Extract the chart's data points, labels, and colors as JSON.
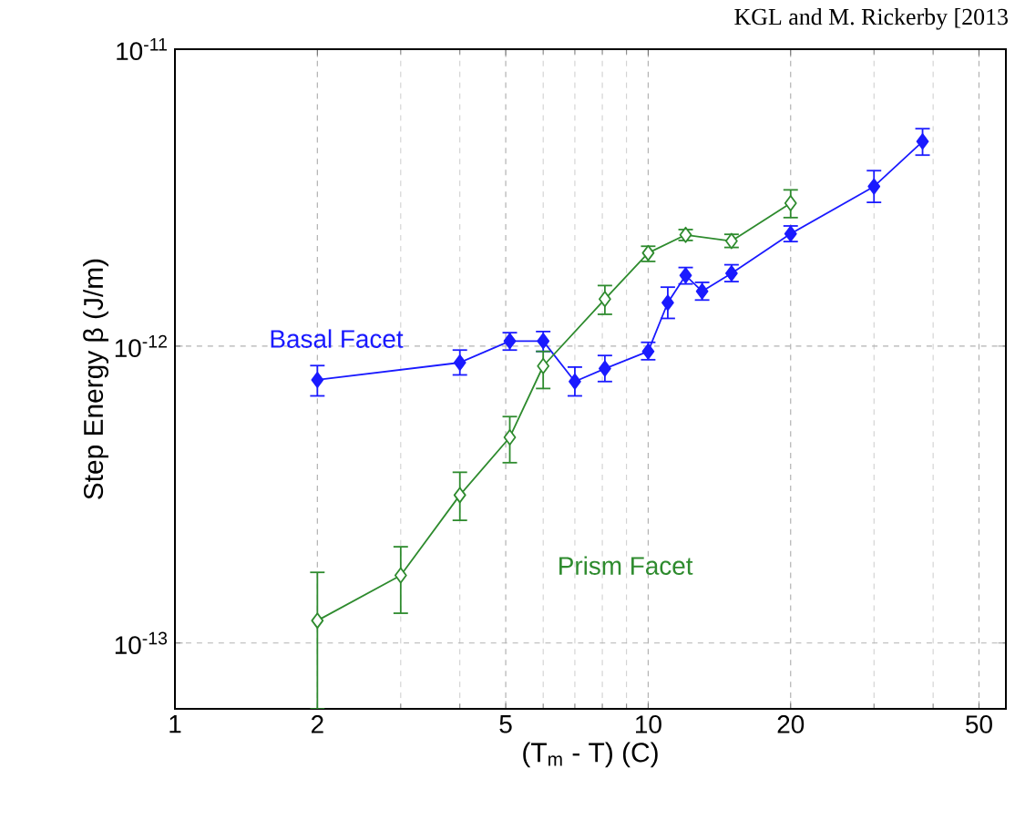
{
  "chart_data": {
    "type": "line",
    "xlabel": "(T$_{m}$ - T) (C)",
    "ylabel": "Step Energy β  (J/m)",
    "log": "xy",
    "xlim": [
      1,
      57
    ],
    "ylim": [
      6e-14,
      1e-11
    ],
    "xticks": [
      1,
      2,
      5,
      10,
      20,
      50
    ],
    "yticks": [
      {
        "value": 1e-13,
        "label": "10$^{-13}$"
      },
      {
        "value": 1e-12,
        "label": "10$^{-12}$"
      },
      {
        "value": 1e-11,
        "label": "10$^{-11}$"
      }
    ],
    "grid": true,
    "marker": "diamond",
    "line_style": "solid",
    "series": [
      {
        "name": "Basal Facet",
        "color": "#1a1aff",
        "x": [
          2,
          4,
          5.1,
          6,
          7,
          8.1,
          10,
          11,
          12,
          13,
          15,
          20,
          30,
          38
        ],
        "values": [
          7.7e-13,
          8.8e-13,
          1.04e-12,
          1.04e-12,
          7.6e-13,
          8.4e-13,
          9.6e-13,
          1.4e-12,
          1.73e-12,
          1.53e-12,
          1.76e-12,
          2.39e-12,
          3.45e-12,
          4.89e-12
        ],
        "errors": [
          [
            6.8e-13,
            8.6e-13
          ],
          [
            8e-13,
            9.7e-13
          ],
          [
            9.7e-13,
            1.11e-12
          ],
          [
            9.6e-13,
            1.12e-12
          ],
          [
            6.8e-13,
            8.5e-13
          ],
          [
            7.6e-13,
            9.3e-13
          ],
          [
            9e-13,
            1.03e-12
          ],
          [
            1.24e-12,
            1.58e-12
          ],
          [
            1.62e-12,
            1.84e-12
          ],
          [
            1.43e-12,
            1.64e-12
          ],
          [
            1.65e-12,
            1.88e-12
          ],
          [
            2.25e-12,
            2.54e-12
          ],
          [
            3.05e-12,
            3.9e-12
          ],
          [
            4.4e-12,
            5.4e-12
          ]
        ]
      },
      {
        "name": "Prism Facet",
        "color": "#2e8b2e",
        "x": [
          2,
          3,
          4,
          5.1,
          6,
          8.1,
          10,
          12,
          15,
          20
        ],
        "values": [
          1.19e-13,
          1.69e-13,
          3.15e-13,
          4.93e-13,
          8.57e-13,
          1.44e-12,
          2.06e-12,
          2.37e-12,
          2.26e-12,
          3.03e-12
        ],
        "errors": [
          [
            6e-14,
            1.73e-13
          ],
          [
            1.26e-13,
            2.11e-13
          ],
          [
            2.59e-13,
            3.76e-13
          ],
          [
            4.05e-13,
            5.79e-13
          ],
          [
            7.2e-13,
            9.6e-13
          ],
          [
            1.28e-12,
            1.6e-12
          ],
          [
            1.93e-12,
            2.17e-12
          ],
          [
            2.27e-12,
            2.47e-12
          ],
          [
            2.15e-12,
            2.38e-12
          ],
          [
            2.71e-12,
            3.36e-12
          ]
        ]
      }
    ],
    "annotations": [
      "KGL and M. Rickerby [2013"
    ]
  }
}
